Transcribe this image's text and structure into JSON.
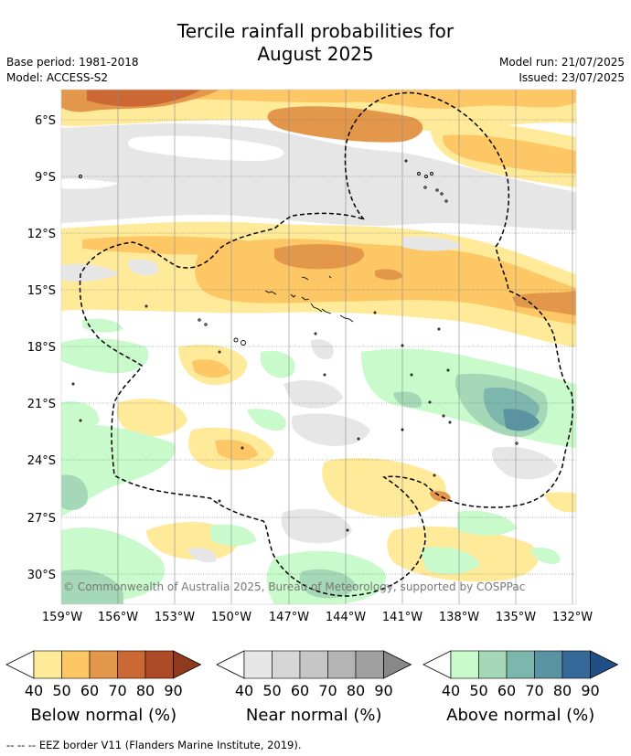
{
  "header": {
    "title_line1": "Tercile rainfall probabilities for",
    "title_line2": "August 2025",
    "base_period": "Base period: 1981-2018",
    "model": "Model: ACCESS-S2",
    "model_run": "Model run: 21/07/2025",
    "issued": "Issued: 23/07/2025"
  },
  "map": {
    "lat_labels": [
      "6°S",
      "9°S",
      "12°S",
      "15°S",
      "18°S",
      "21°S",
      "24°S",
      "27°S",
      "30°S"
    ],
    "lon_labels": [
      "159°W",
      "156°W",
      "153°W",
      "150°W",
      "147°W",
      "144°W",
      "141°W",
      "138°W",
      "135°W",
      "132°W"
    ],
    "copyright": "© Commonwealth of Australia 2025, Bureau of Meteorology, supported by COSPPac"
  },
  "colorbars": [
    {
      "label": "Below normal (%)",
      "ticks": [
        "40",
        "50",
        "60",
        "70",
        "80",
        "90"
      ],
      "colors": [
        "#ffea99",
        "#fdc766",
        "#e3974a",
        "#cc6834",
        "#ad4a27",
        "#8f3a1f"
      ]
    },
    {
      "label": "Near normal (%)",
      "ticks": [
        "40",
        "50",
        "60",
        "70",
        "80",
        "90"
      ],
      "colors": [
        "#e6e6e6",
        "#d6d6d6",
        "#c6c6c6",
        "#b4b4b4",
        "#a0a0a0",
        "#888888"
      ]
    },
    {
      "label": "Above normal (%)",
      "ticks": [
        "40",
        "50",
        "60",
        "70",
        "80",
        "90"
      ],
      "colors": [
        "#c8facb",
        "#a4d8b6",
        "#7db6ad",
        "#5a94a2",
        "#356999",
        "#1f4f84"
      ]
    }
  ],
  "footer": "--  --  -- EEZ border V11 (Flanders Marine Institute, 2019)."
}
